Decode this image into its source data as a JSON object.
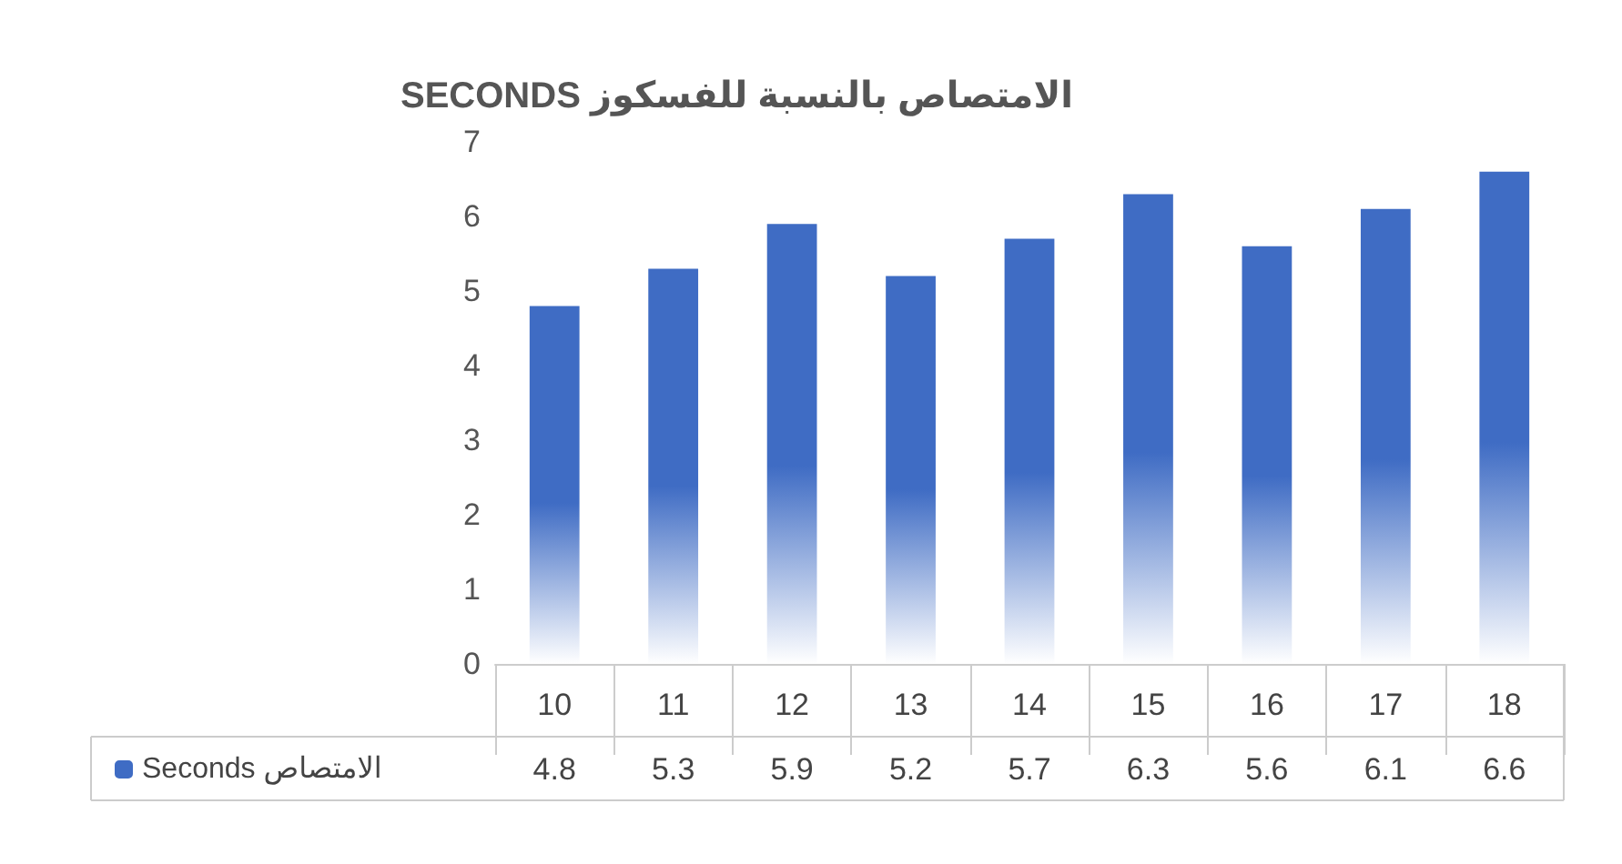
{
  "chart_data": {
    "type": "bar",
    "title": "SECONDS الامتصاص بالنسبة للفسكوز",
    "categories": [
      "10",
      "11",
      "12",
      "13",
      "14",
      "15",
      "16",
      "17",
      "18"
    ],
    "series": [
      {
        "name": "Seconds الامتصاص",
        "color": "#3f6cc4",
        "values": [
          4.8,
          5.3,
          5.9,
          5.2,
          5.7,
          6.3,
          5.6,
          6.1,
          6.6
        ]
      }
    ],
    "ylim": [
      0,
      7
    ],
    "yticks": [
      0,
      1,
      2,
      3,
      4,
      5,
      6,
      7
    ],
    "grid": false,
    "legend": "bottom left",
    "data_labels": true
  }
}
